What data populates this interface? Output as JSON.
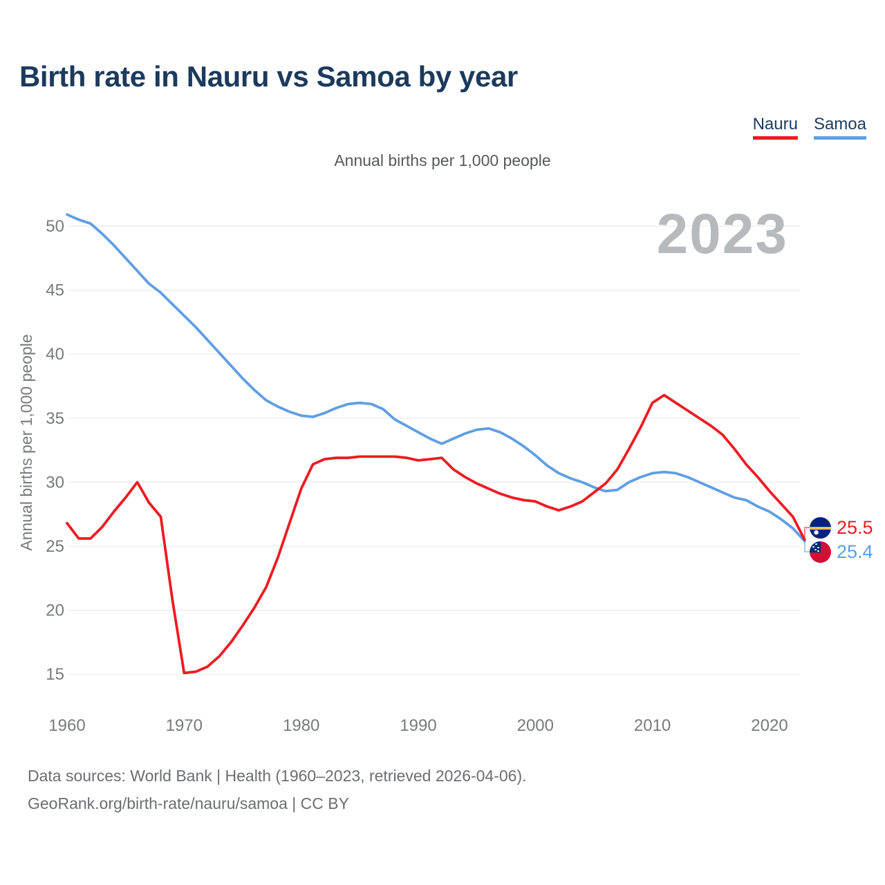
{
  "header": {
    "title": "Birth rate in Nauru vs Samoa by year"
  },
  "footer": {
    "line1": "Data sources: World Bank | Health (1960–2023, retrieved 2026-04-06).",
    "line2": "GeoRank.org/birth-rate/nauru/samoa | CC BY"
  },
  "icons": {
    "nauru_flag": {
      "name": "nauru-flag-icon",
      "colors": [
        "#01247d",
        "#ffc04d",
        "#ffffff"
      ]
    },
    "samoa_flag": {
      "name": "samoa-flag-icon",
      "colors": [
        "#d21034",
        "#012b7f",
        "#ffffff"
      ]
    }
  },
  "chart_data": {
    "type": "line",
    "title": "Birth rate in Nauru vs Samoa by year",
    "subtitle": "Annual births per 1,000 people",
    "ylabel": "Annual births per 1,000 people",
    "xlabel": "",
    "watermark_year": "2023",
    "grid": "horizontal",
    "legend_position": "top-right",
    "x": [
      1960,
      1961,
      1962,
      1963,
      1964,
      1965,
      1966,
      1967,
      1968,
      1969,
      1970,
      1971,
      1972,
      1973,
      1974,
      1975,
      1976,
      1977,
      1978,
      1979,
      1980,
      1981,
      1982,
      1983,
      1984,
      1985,
      1986,
      1987,
      1988,
      1989,
      1990,
      1991,
      1992,
      1993,
      1994,
      1995,
      1996,
      1997,
      1998,
      1999,
      2000,
      2001,
      2002,
      2003,
      2004,
      2005,
      2006,
      2007,
      2008,
      2009,
      2010,
      2011,
      2012,
      2013,
      2014,
      2015,
      2016,
      2017,
      2018,
      2019,
      2020,
      2021,
      2022,
      2023
    ],
    "series": [
      {
        "name": "Nauru",
        "color": "#ee1b22",
        "end_label": "25.5",
        "values": [
          26.8,
          25.6,
          25.6,
          26.5,
          27.7,
          28.8,
          30.0,
          28.4,
          27.3,
          20.8,
          15.1,
          15.2,
          15.6,
          16.4,
          17.5,
          18.8,
          20.2,
          21.8,
          24.1,
          26.8,
          29.5,
          31.4,
          31.8,
          31.9,
          31.9,
          32.0,
          32.0,
          32.0,
          32.0,
          31.9,
          31.7,
          31.8,
          31.9,
          31.0,
          30.4,
          29.9,
          29.5,
          29.1,
          28.8,
          28.6,
          28.5,
          28.1,
          27.8,
          28.1,
          28.5,
          29.2,
          29.9,
          31.0,
          32.6,
          34.3,
          36.2,
          36.8,
          36.2,
          35.6,
          35.0,
          34.4,
          33.7,
          32.6,
          31.4,
          30.4,
          29.3,
          28.3,
          27.3,
          25.5
        ]
      },
      {
        "name": "Samoa",
        "color": "#609ee3",
        "end_label": "25.4",
        "values": [
          50.9,
          50.5,
          50.2,
          49.4,
          48.5,
          47.5,
          46.5,
          45.5,
          44.8,
          43.9,
          43.0,
          42.1,
          41.1,
          40.1,
          39.1,
          38.1,
          37.2,
          36.4,
          35.9,
          35.5,
          35.2,
          35.1,
          35.4,
          35.8,
          36.1,
          36.2,
          36.1,
          35.7,
          34.9,
          34.4,
          33.9,
          33.4,
          33.0,
          33.4,
          33.8,
          34.1,
          34.2,
          33.9,
          33.4,
          32.8,
          32.1,
          31.3,
          30.7,
          30.3,
          30.0,
          29.6,
          29.3,
          29.4,
          30.0,
          30.4,
          30.7,
          30.8,
          30.7,
          30.4,
          30.0,
          29.6,
          29.2,
          28.8,
          28.6,
          28.1,
          27.7,
          27.1,
          26.4,
          25.4
        ]
      }
    ],
    "xticks": [
      1960,
      1970,
      1980,
      1990,
      2000,
      2010,
      2020
    ],
    "yticks": [
      15,
      20,
      25,
      30,
      35,
      40,
      45,
      50
    ],
    "ylim": [
      15,
      50
    ]
  }
}
